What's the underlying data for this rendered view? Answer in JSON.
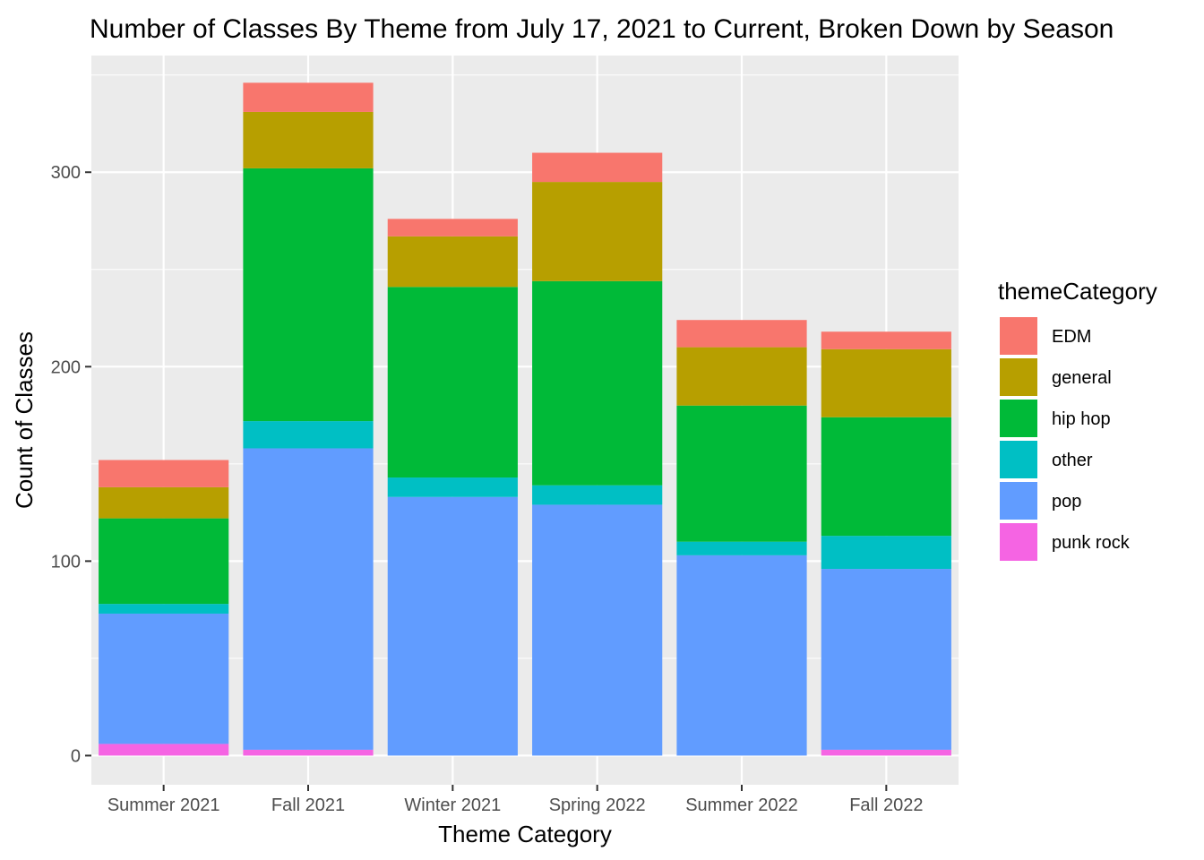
{
  "chart_data": {
    "type": "bar",
    "stacked": true,
    "title": "Number of Classes By Theme from July 17, 2021 to Current, Broken Down by Season",
    "xlabel": "Theme Category",
    "ylabel": "Count of Classes",
    "ylim": [
      -15,
      360
    ],
    "yticks": [
      0,
      100,
      200,
      300
    ],
    "categories": [
      "Summer 2021",
      "Fall 2021",
      "Winter 2021",
      "Spring 2022",
      "Summer 2022",
      "Fall 2022"
    ],
    "legend": {
      "title": "themeCategory",
      "position": "right"
    },
    "grid": true,
    "series": [
      {
        "name": "punk rock",
        "color": "#F564E3",
        "values": [
          6,
          3,
          0,
          0,
          0,
          3
        ]
      },
      {
        "name": "pop",
        "color": "#619CFF",
        "values": [
          67,
          155,
          133,
          129,
          103,
          93
        ]
      },
      {
        "name": "other",
        "color": "#00BFC4",
        "values": [
          5,
          14,
          10,
          10,
          7,
          17
        ]
      },
      {
        "name": "hip hop",
        "color": "#00BA38",
        "values": [
          44,
          130,
          98,
          105,
          70,
          61
        ]
      },
      {
        "name": "general",
        "color": "#B79F00",
        "values": [
          16,
          29,
          26,
          51,
          30,
          35
        ]
      },
      {
        "name": "EDM",
        "color": "#F8766D",
        "values": [
          14,
          15,
          9,
          15,
          14,
          9
        ]
      }
    ],
    "legend_order": [
      "EDM",
      "general",
      "hip hop",
      "other",
      "pop",
      "punk rock"
    ]
  }
}
